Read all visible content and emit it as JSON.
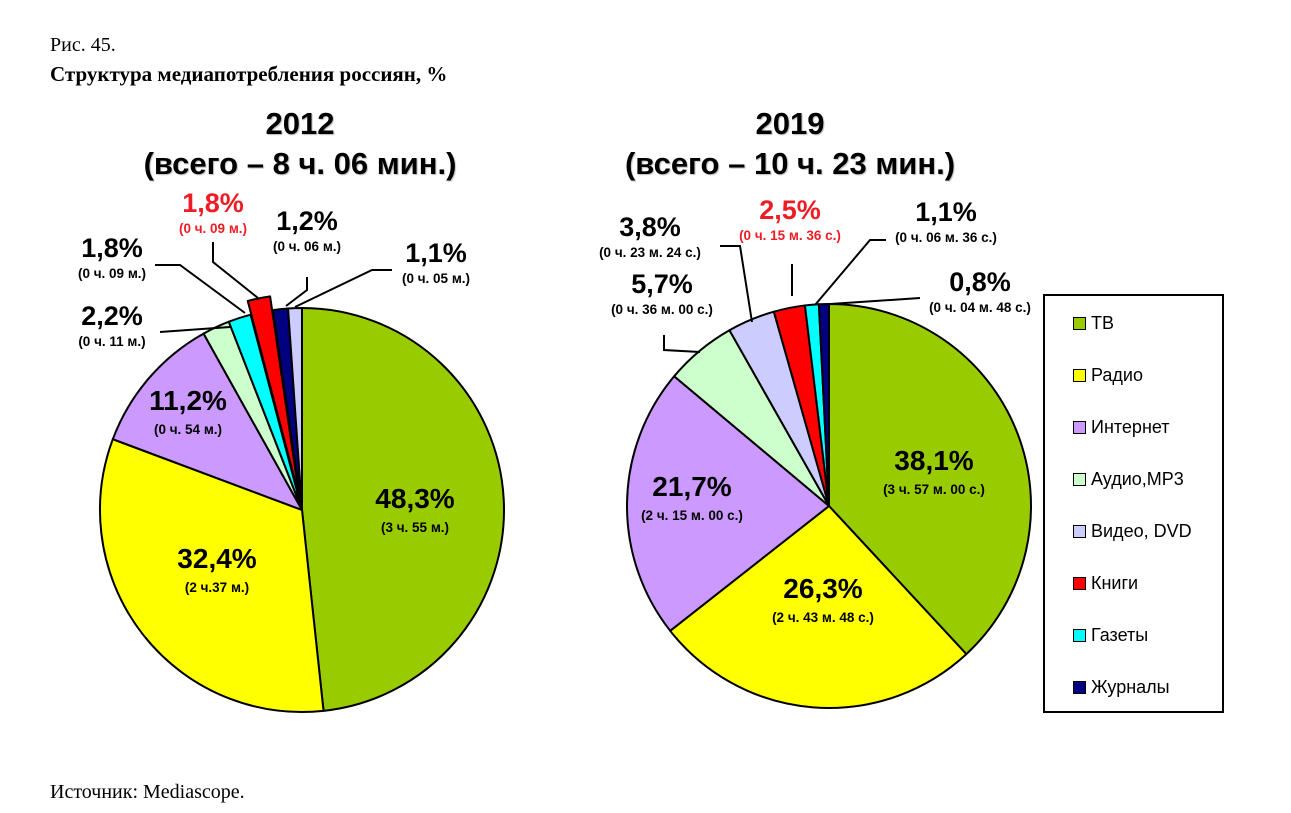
{
  "figure": {
    "label": "Рис. 45.",
    "title": "Структура медиапотребления россиян, %",
    "source": "Источник: Mediascope."
  },
  "chart_data": [
    {
      "type": "pie",
      "title": "2012",
      "subtitle": "(всего – 8 ч. 06 мин.)",
      "categories": [
        "ТВ",
        "Радио",
        "Интернет",
        "Аудио,MP3",
        "Газеты",
        "Книги",
        "Журналы",
        "Видео, DVD"
      ],
      "values": [
        48.3,
        32.4,
        11.2,
        2.2,
        1.8,
        1.8,
        1.2,
        1.1
      ],
      "value_labels": [
        "48,3%",
        "32,4%",
        "11,2%",
        "2,2%",
        "1,8%",
        "1,8%",
        "1,2%",
        "1,1%"
      ],
      "time_labels": [
        "(3 ч. 55 м.)",
        "(2 ч.37 м.)",
        "(0 ч. 54 м.)",
        "(0 ч. 11 м.)",
        "(0 ч. 09 м.)",
        "(0 ч. 09 м.)",
        "(0 ч. 06 м.)",
        "(0 ч. 05 м.)"
      ],
      "highlighted": "Книги",
      "exploded": "Книги"
    },
    {
      "type": "pie",
      "title": "2019",
      "subtitle": "(всего – 10 ч. 23 мин.)",
      "categories": [
        "ТВ",
        "Радио",
        "Интернет",
        "Аудио,MP3",
        "Видео, DVD",
        "Книги",
        "Газеты",
        "Журналы"
      ],
      "values": [
        38.1,
        26.3,
        21.7,
        5.7,
        3.8,
        2.5,
        1.1,
        0.8
      ],
      "value_labels": [
        "38,1%",
        "26,3%",
        "21,7%",
        "5,7%",
        "3,8%",
        "2,5%",
        "1,1%",
        "0,8%"
      ],
      "time_labels": [
        "(3 ч. 57 м. 00 с.)",
        "(2 ч. 43 м. 48 с.)",
        "(2 ч. 15 м. 00 с.)",
        "(0 ч. 36 м. 00 с.)",
        "(0 ч. 23 м. 24 с.)",
        "(0 ч. 15 м. 36 с.)",
        "(0 ч. 06 м. 36 с.)",
        "(0 ч. 04 м. 48 с.)"
      ],
      "highlighted": "Книги"
    }
  ],
  "legend": {
    "placement": "right",
    "items": [
      {
        "label": "ТВ",
        "color": "#99cc00"
      },
      {
        "label": "Радио",
        "color": "#ffff00"
      },
      {
        "label": "Интернет",
        "color": "#cc99ff"
      },
      {
        "label": "Аудио,MP3",
        "color": "#ccffcc"
      },
      {
        "label": "Видео, DVD",
        "color": "#ccccff"
      },
      {
        "label": "Книги",
        "color": "#ff0000"
      },
      {
        "label": "Газеты",
        "color": "#00ffff"
      },
      {
        "label": "Журналы",
        "color": "#000080"
      }
    ]
  },
  "highlight_color": "#ee1c24"
}
